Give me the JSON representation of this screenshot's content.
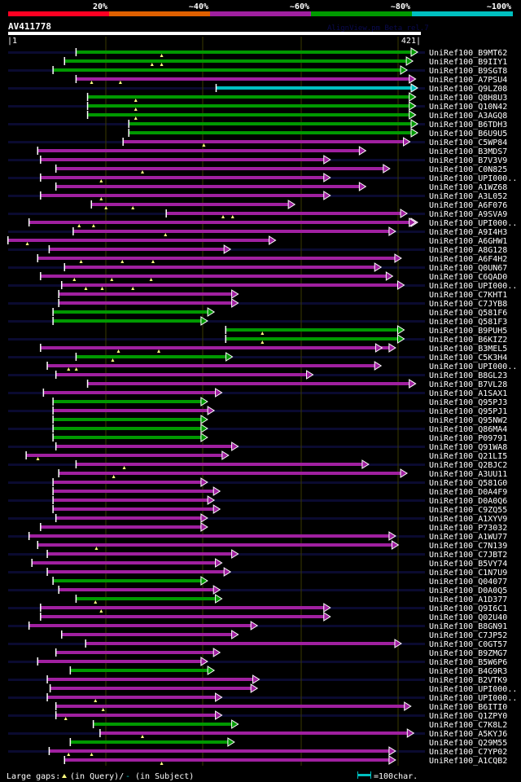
{
  "header": {
    "scale_labels": [
      "20%",
      "~40%",
      "~60%",
      "~80%",
      "~100%"
    ],
    "scale_colors": [
      "#ff0022",
      "#e06000",
      "#a020a0",
      "#009900",
      "#00c0c0"
    ],
    "query_name": "AV411778",
    "watermark": "AlignView.pm Beta rel.7",
    "query_start": "|1",
    "query_end": "421|"
  },
  "colors": {
    "g": "#009900",
    "m": "#a020a0",
    "c": "#00c0c0",
    "stripe": "#0a0a30",
    "grid": "#3a3a00",
    "gap_marker": "#ffff80"
  },
  "chart_data": {
    "type": "alignment",
    "query_length": 421,
    "hits": [
      {
        "id": "UniRef100_B9MT62",
        "start": 72,
        "end": 421,
        "color": "g",
        "gaps": [
          161
        ]
      },
      {
        "id": "UniRef100_B9IIY1",
        "start": 60,
        "end": 416,
        "color": "g",
        "gaps": [
          151,
          161
        ]
      },
      {
        "id": "UniRef100_B9SGT8",
        "start": 48,
        "end": 410,
        "color": "g",
        "gaps": []
      },
      {
        "id": "UniRef100_A7PSU4",
        "start": 72,
        "end": 419,
        "color": "m",
        "gaps": [
          88,
          118
        ]
      },
      {
        "id": "UniRef100_Q9LZ08",
        "start": 218,
        "end": 421,
        "color": "c",
        "gaps": []
      },
      {
        "id": "UniRef100_Q8H8U3",
        "start": 84,
        "end": 419,
        "color": "g",
        "gaps": [
          134
        ]
      },
      {
        "id": "UniRef100_Q10N42",
        "start": 84,
        "end": 419,
        "color": "g",
        "gaps": [
          134
        ]
      },
      {
        "id": "UniRef100_A3AGQ8",
        "start": 84,
        "end": 419,
        "color": "g",
        "gaps": [
          134
        ]
      },
      {
        "id": "UniRef100_B6TDH3",
        "start": 127,
        "end": 421,
        "color": "g",
        "gaps": []
      },
      {
        "id": "UniRef100_B6U9U5",
        "start": 127,
        "end": 421,
        "color": "g",
        "gaps": []
      },
      {
        "id": "UniRef100_C5WP84",
        "start": 121,
        "end": 413,
        "color": "m",
        "gaps": [
          205
        ]
      },
      {
        "id": "UniRef100_B3MDS7",
        "start": 32,
        "end": 367,
        "color": "m",
        "gaps": []
      },
      {
        "id": "UniRef100_B7V3V9",
        "start": 35,
        "end": 330,
        "color": "m",
        "gaps": []
      },
      {
        "id": "UniRef100_C0N825",
        "start": 51,
        "end": 392,
        "color": "m",
        "gaps": [
          141
        ]
      },
      {
        "id": "UniRef100_UPI000..",
        "start": 35,
        "end": 330,
        "color": "m",
        "gaps": [
          98
        ]
      },
      {
        "id": "UniRef100_A1WZ68",
        "start": 51,
        "end": 367,
        "color": "m",
        "gaps": []
      },
      {
        "id": "UniRef100_A3L052",
        "start": 35,
        "end": 330,
        "color": "m",
        "gaps": [
          98
        ]
      },
      {
        "id": "UniRef100_A6F076",
        "start": 88,
        "end": 293,
        "color": "m",
        "gaps": [
          103,
          131
        ]
      },
      {
        "id": "UniRef100_A9SVA9",
        "start": 166,
        "end": 410,
        "color": "m",
        "gaps": [
          225,
          235
        ]
      },
      {
        "id": "UniRef100_UPI000..",
        "start": 23,
        "end": 421,
        "color": "m",
        "gaps": [
          75,
          90
        ],
        "end2": 419
      },
      {
        "id": "UniRef100_A9I4H3",
        "start": 69,
        "end": 398,
        "color": "m",
        "gaps": [
          165
        ]
      },
      {
        "id": "UniRef100_A6GHW1",
        "start": 1,
        "end": 273,
        "color": "m",
        "gaps": [
          21
        ]
      },
      {
        "id": "UniRef100_A8G128",
        "start": 44,
        "end": 226,
        "color": "m",
        "gaps": []
      },
      {
        "id": "UniRef100_A6F4H2",
        "start": 32,
        "end": 404,
        "color": "m",
        "gaps": [
          77,
          120,
          152
        ]
      },
      {
        "id": "UniRef100_Q0UN67",
        "start": 60,
        "end": 383,
        "color": "m",
        "gaps": []
      },
      {
        "id": "UniRef100_C6QAD0",
        "start": 35,
        "end": 395,
        "color": "m",
        "gaps": [
          70,
          109,
          150
        ]
      },
      {
        "id": "UniRef100_UPI000..",
        "start": 57,
        "end": 407,
        "color": "m",
        "gaps": [
          82,
          99,
          131
        ]
      },
      {
        "id": "UniRef100_C7KHT1",
        "start": 54,
        "end": 234,
        "color": "m",
        "gaps": []
      },
      {
        "id": "UniRef100_C7JYB8",
        "start": 54,
        "end": 234,
        "color": "m",
        "gaps": []
      },
      {
        "id": "UniRef100_Q581F6",
        "start": 48,
        "end": 209,
        "color": "g",
        "gaps": []
      },
      {
        "id": "UniRef100_Q581F3",
        "start": 48,
        "end": 202,
        "color": "g",
        "gaps": []
      },
      {
        "id": "UniRef100_B9PUH5",
        "start": 228,
        "end": 407,
        "color": "g",
        "gaps": [
          266
        ]
      },
      {
        "id": "UniRef100_B6KIZ2",
        "start": 228,
        "end": 407,
        "color": "g",
        "gaps": [
          266
        ]
      },
      {
        "id": "UniRef100_B3MEL5",
        "start": 35,
        "end": 398,
        "color": "m",
        "gaps": [
          116,
          158
        ],
        "end2": 384
      },
      {
        "id": "UniRef100_C5K3H4",
        "start": 72,
        "end": 228,
        "color": "g",
        "gaps": [
          110
        ]
      },
      {
        "id": "UniRef100_UPI000..",
        "start": 42,
        "end": 383,
        "color": "m",
        "gaps": [
          64,
          72
        ]
      },
      {
        "id": "UniRef100_B8GL23",
        "start": 51,
        "end": 312,
        "color": "m",
        "gaps": []
      },
      {
        "id": "UniRef100_B7VL28",
        "start": 84,
        "end": 419,
        "color": "m",
        "gaps": []
      },
      {
        "id": "UniRef100_A1SAX1",
        "start": 38,
        "end": 217,
        "color": "m",
        "gaps": []
      },
      {
        "id": "UniRef100_Q95PJ3",
        "start": 48,
        "end": 202,
        "color": "g",
        "gaps": []
      },
      {
        "id": "UniRef100_Q95PJ1",
        "start": 48,
        "end": 209,
        "color": "m",
        "gaps": []
      },
      {
        "id": "UniRef100_Q95NW2",
        "start": 48,
        "end": 202,
        "color": "g",
        "gaps": []
      },
      {
        "id": "UniRef100_Q86MA4",
        "start": 48,
        "end": 202,
        "color": "g",
        "gaps": []
      },
      {
        "id": "UniRef100_P09791",
        "start": 48,
        "end": 202,
        "color": "g",
        "gaps": []
      },
      {
        "id": "UniRef100_Q91WA8",
        "start": 51,
        "end": 234,
        "color": "m",
        "gaps": []
      },
      {
        "id": "UniRef100_Q21LI5",
        "start": 20,
        "end": 224,
        "color": "m",
        "gaps": [
          32
        ]
      },
      {
        "id": "UniRef100_Q2BJC2",
        "start": 72,
        "end": 370,
        "color": "m",
        "gaps": [
          122
        ]
      },
      {
        "id": "UniRef100_A3UU11",
        "start": 54,
        "end": 410,
        "color": "m",
        "gaps": [
          111
        ]
      },
      {
        "id": "UniRef100_Q581G0",
        "start": 48,
        "end": 202,
        "color": "m",
        "gaps": []
      },
      {
        "id": "UniRef100_D0A4F9",
        "start": 48,
        "end": 215,
        "color": "m",
        "gaps": []
      },
      {
        "id": "UniRef100_D0A0Q6",
        "start": 48,
        "end": 209,
        "color": "m",
        "gaps": []
      },
      {
        "id": "UniRef100_C9ZQ55",
        "start": 48,
        "end": 215,
        "color": "m",
        "gaps": []
      },
      {
        "id": "UniRef100_A1XYV9",
        "start": 51,
        "end": 202,
        "color": "m",
        "gaps": []
      },
      {
        "id": "UniRef100_P73032",
        "start": 35,
        "end": 202,
        "color": "m",
        "gaps": []
      },
      {
        "id": "UniRef100_A1WU77",
        "start": 23,
        "end": 398,
        "color": "m",
        "gaps": []
      },
      {
        "id": "UniRef100_C7N139",
        "start": 32,
        "end": 401,
        "color": "m",
        "gaps": [
          93
        ]
      },
      {
        "id": "UniRef100_C7JBT2",
        "start": 42,
        "end": 234,
        "color": "m",
        "gaps": []
      },
      {
        "id": "UniRef100_B5VY74",
        "start": 26,
        "end": 217,
        "color": "m",
        "gaps": []
      },
      {
        "id": "UniRef100_C1N7U9",
        "start": 42,
        "end": 226,
        "color": "m",
        "gaps": []
      },
      {
        "id": "UniRef100_Q04077",
        "start": 48,
        "end": 202,
        "color": "g",
        "gaps": []
      },
      {
        "id": "UniRef100_D0A0Q5",
        "start": 54,
        "end": 215,
        "color": "m",
        "gaps": []
      },
      {
        "id": "UniRef100_A1D377",
        "start": 72,
        "end": 217,
        "color": "g",
        "gaps": [
          92
        ]
      },
      {
        "id": "UniRef100_Q9I6C1",
        "start": 35,
        "end": 330,
        "color": "m",
        "gaps": [
          98
        ]
      },
      {
        "id": "UniRef100_Q02U40",
        "start": 35,
        "end": 330,
        "color": "m",
        "gaps": []
      },
      {
        "id": "UniRef100_B8GN91",
        "start": 23,
        "end": 254,
        "color": "m",
        "gaps": []
      },
      {
        "id": "UniRef100_C7JP52",
        "start": 57,
        "end": 234,
        "color": "m",
        "gaps": []
      },
      {
        "id": "UniRef100_C0GT57",
        "start": 82,
        "end": 404,
        "color": "m",
        "gaps": []
      },
      {
        "id": "UniRef100_B9ZMG7",
        "start": 51,
        "end": 215,
        "color": "m",
        "gaps": []
      },
      {
        "id": "UniRef100_B5W6P6",
        "start": 32,
        "end": 202,
        "color": "m",
        "gaps": []
      },
      {
        "id": "UniRef100_B4G9R3",
        "start": 66,
        "end": 209,
        "color": "g",
        "gaps": []
      },
      {
        "id": "UniRef100_B2VTK9",
        "start": 42,
        "end": 256,
        "color": "m",
        "gaps": []
      },
      {
        "id": "UniRef100_UPI000..",
        "start": 45,
        "end": 254,
        "color": "m",
        "gaps": []
      },
      {
        "id": "UniRef100_UPI000..",
        "start": 42,
        "end": 217,
        "color": "m",
        "gaps": [
          92
        ]
      },
      {
        "id": "UniRef100_B6ITI0",
        "start": 51,
        "end": 414,
        "color": "m",
        "gaps": [
          100
        ]
      },
      {
        "id": "UniRef100_Q1ZPY0",
        "start": 51,
        "end": 217,
        "color": "m",
        "gaps": [
          61
        ]
      },
      {
        "id": "UniRef100_C7K8L2",
        "start": 90,
        "end": 234,
        "color": "g",
        "gaps": []
      },
      {
        "id": "UniRef100_A5KYJ6",
        "start": 97,
        "end": 417,
        "color": "m",
        "gaps": [
          141
        ]
      },
      {
        "id": "UniRef100_Q29M55",
        "start": 66,
        "end": 230,
        "color": "g",
        "gaps": []
      },
      {
        "id": "UniRef100_C7YP02",
        "start": 44,
        "end": 398,
        "color": "m",
        "gaps": [
          64,
          88
        ]
      },
      {
        "id": "UniRef100_A1CQB2",
        "start": 60,
        "end": 398,
        "color": "m",
        "gaps": [
          161
        ]
      }
    ]
  },
  "legend": {
    "large_gaps_label": "Large gaps:",
    "query_label": "(in Query)/",
    "subject_dash": "-",
    "subject_label": " (in Subject)",
    "scale_label": "=100char."
  }
}
